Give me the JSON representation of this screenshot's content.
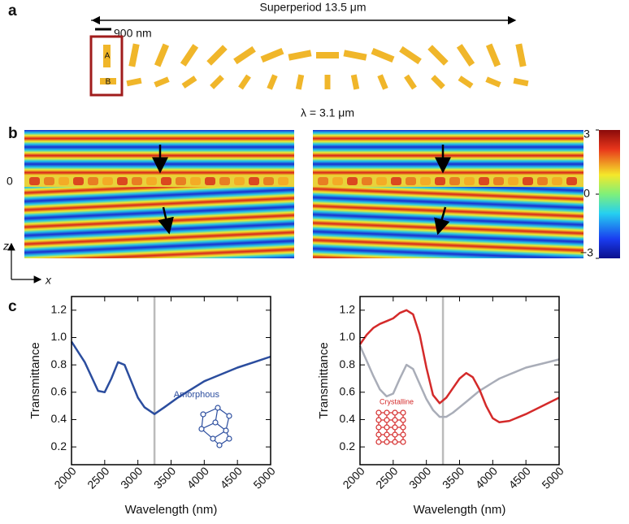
{
  "panel_a": {
    "label": "a",
    "superperiod": "Superperiod 13.5 μm",
    "scale": "900 nm",
    "bar_a": "A",
    "bar_b": "B",
    "wavelength": "λ = 3.1 μm"
  },
  "panel_b": {
    "label": "b",
    "zero": "0",
    "axis_z": "z",
    "axis_x": "x",
    "colorbar": {
      "lim": [
        -3,
        3
      ],
      "ticks": [
        3,
        0,
        {
          "value": -3,
          "label": "−3"
        }
      ]
    }
  },
  "panel_c": {
    "label": "c"
  },
  "chart_data": [
    {
      "type": "line",
      "x_label": "Wavelength (nm)",
      "y_label": "Transmittance",
      "x": [
        2000,
        2200,
        2400,
        2500,
        2600,
        2700,
        2800,
        2900,
        3000,
        3100,
        3250,
        3400,
        3600,
        3800,
        4000,
        4250,
        4500,
        4750,
        5000
      ],
      "series": [
        {
          "name": "Amorphous",
          "color": "#2b4d9e",
          "values": [
            0.97,
            0.82,
            0.61,
            0.6,
            0.7,
            0.82,
            0.8,
            0.68,
            0.56,
            0.49,
            0.44,
            0.49,
            0.56,
            0.62,
            0.68,
            0.73,
            0.78,
            0.82,
            0.86
          ]
        }
      ],
      "vline": 3250,
      "xlim": [
        2000,
        5000
      ],
      "xticks": [
        2000,
        2500,
        3000,
        3500,
        4000,
        4500,
        5000
      ],
      "ylim": [
        0.07,
        1.3
      ],
      "yticks": [
        0.2,
        0.4,
        0.6,
        0.8,
        {
          "value": 1,
          "label": "1.0"
        },
        1.2
      ]
    },
    {
      "type": "line",
      "x_label": "Wavelength (nm)",
      "y_label": "Transmittance",
      "x": [
        2000,
        2100,
        2200,
        2300,
        2400,
        2500,
        2600,
        2700,
        2800,
        2900,
        3000,
        3100,
        3200,
        3300,
        3400,
        3500,
        3600,
        3700,
        3800,
        3900,
        4000,
        4100,
        4250,
        4500,
        4750,
        5000
      ],
      "series": [
        {
          "color": "#a9adb8",
          "values": [
            0.94,
            0.83,
            0.72,
            0.62,
            0.57,
            0.59,
            0.7,
            0.8,
            0.77,
            0.66,
            0.55,
            0.47,
            0.42,
            0.42,
            0.45,
            0.49,
            0.53,
            0.57,
            0.61,
            0.64,
            0.67,
            0.7,
            0.73,
            0.78,
            0.81,
            0.84
          ]
        },
        {
          "name": "Crystalline",
          "color": "#d42a2a",
          "values": [
            0.95,
            1.02,
            1.07,
            1.1,
            1.12,
            1.14,
            1.18,
            1.2,
            1.17,
            1.02,
            0.78,
            0.58,
            0.52,
            0.56,
            0.63,
            0.7,
            0.74,
            0.71,
            0.62,
            0.5,
            0.41,
            0.38,
            0.39,
            0.44,
            0.5,
            0.56
          ]
        }
      ],
      "vline": 3250,
      "xlim": [
        2000,
        5000
      ],
      "xticks": [
        2000,
        2500,
        3000,
        3500,
        4000,
        4500,
        5000
      ],
      "ylim": [
        0.07,
        1.3
      ],
      "yticks": [
        0.2,
        0.4,
        0.6,
        0.8,
        {
          "value": 1,
          "label": "1.0"
        },
        1.2
      ]
    }
  ]
}
